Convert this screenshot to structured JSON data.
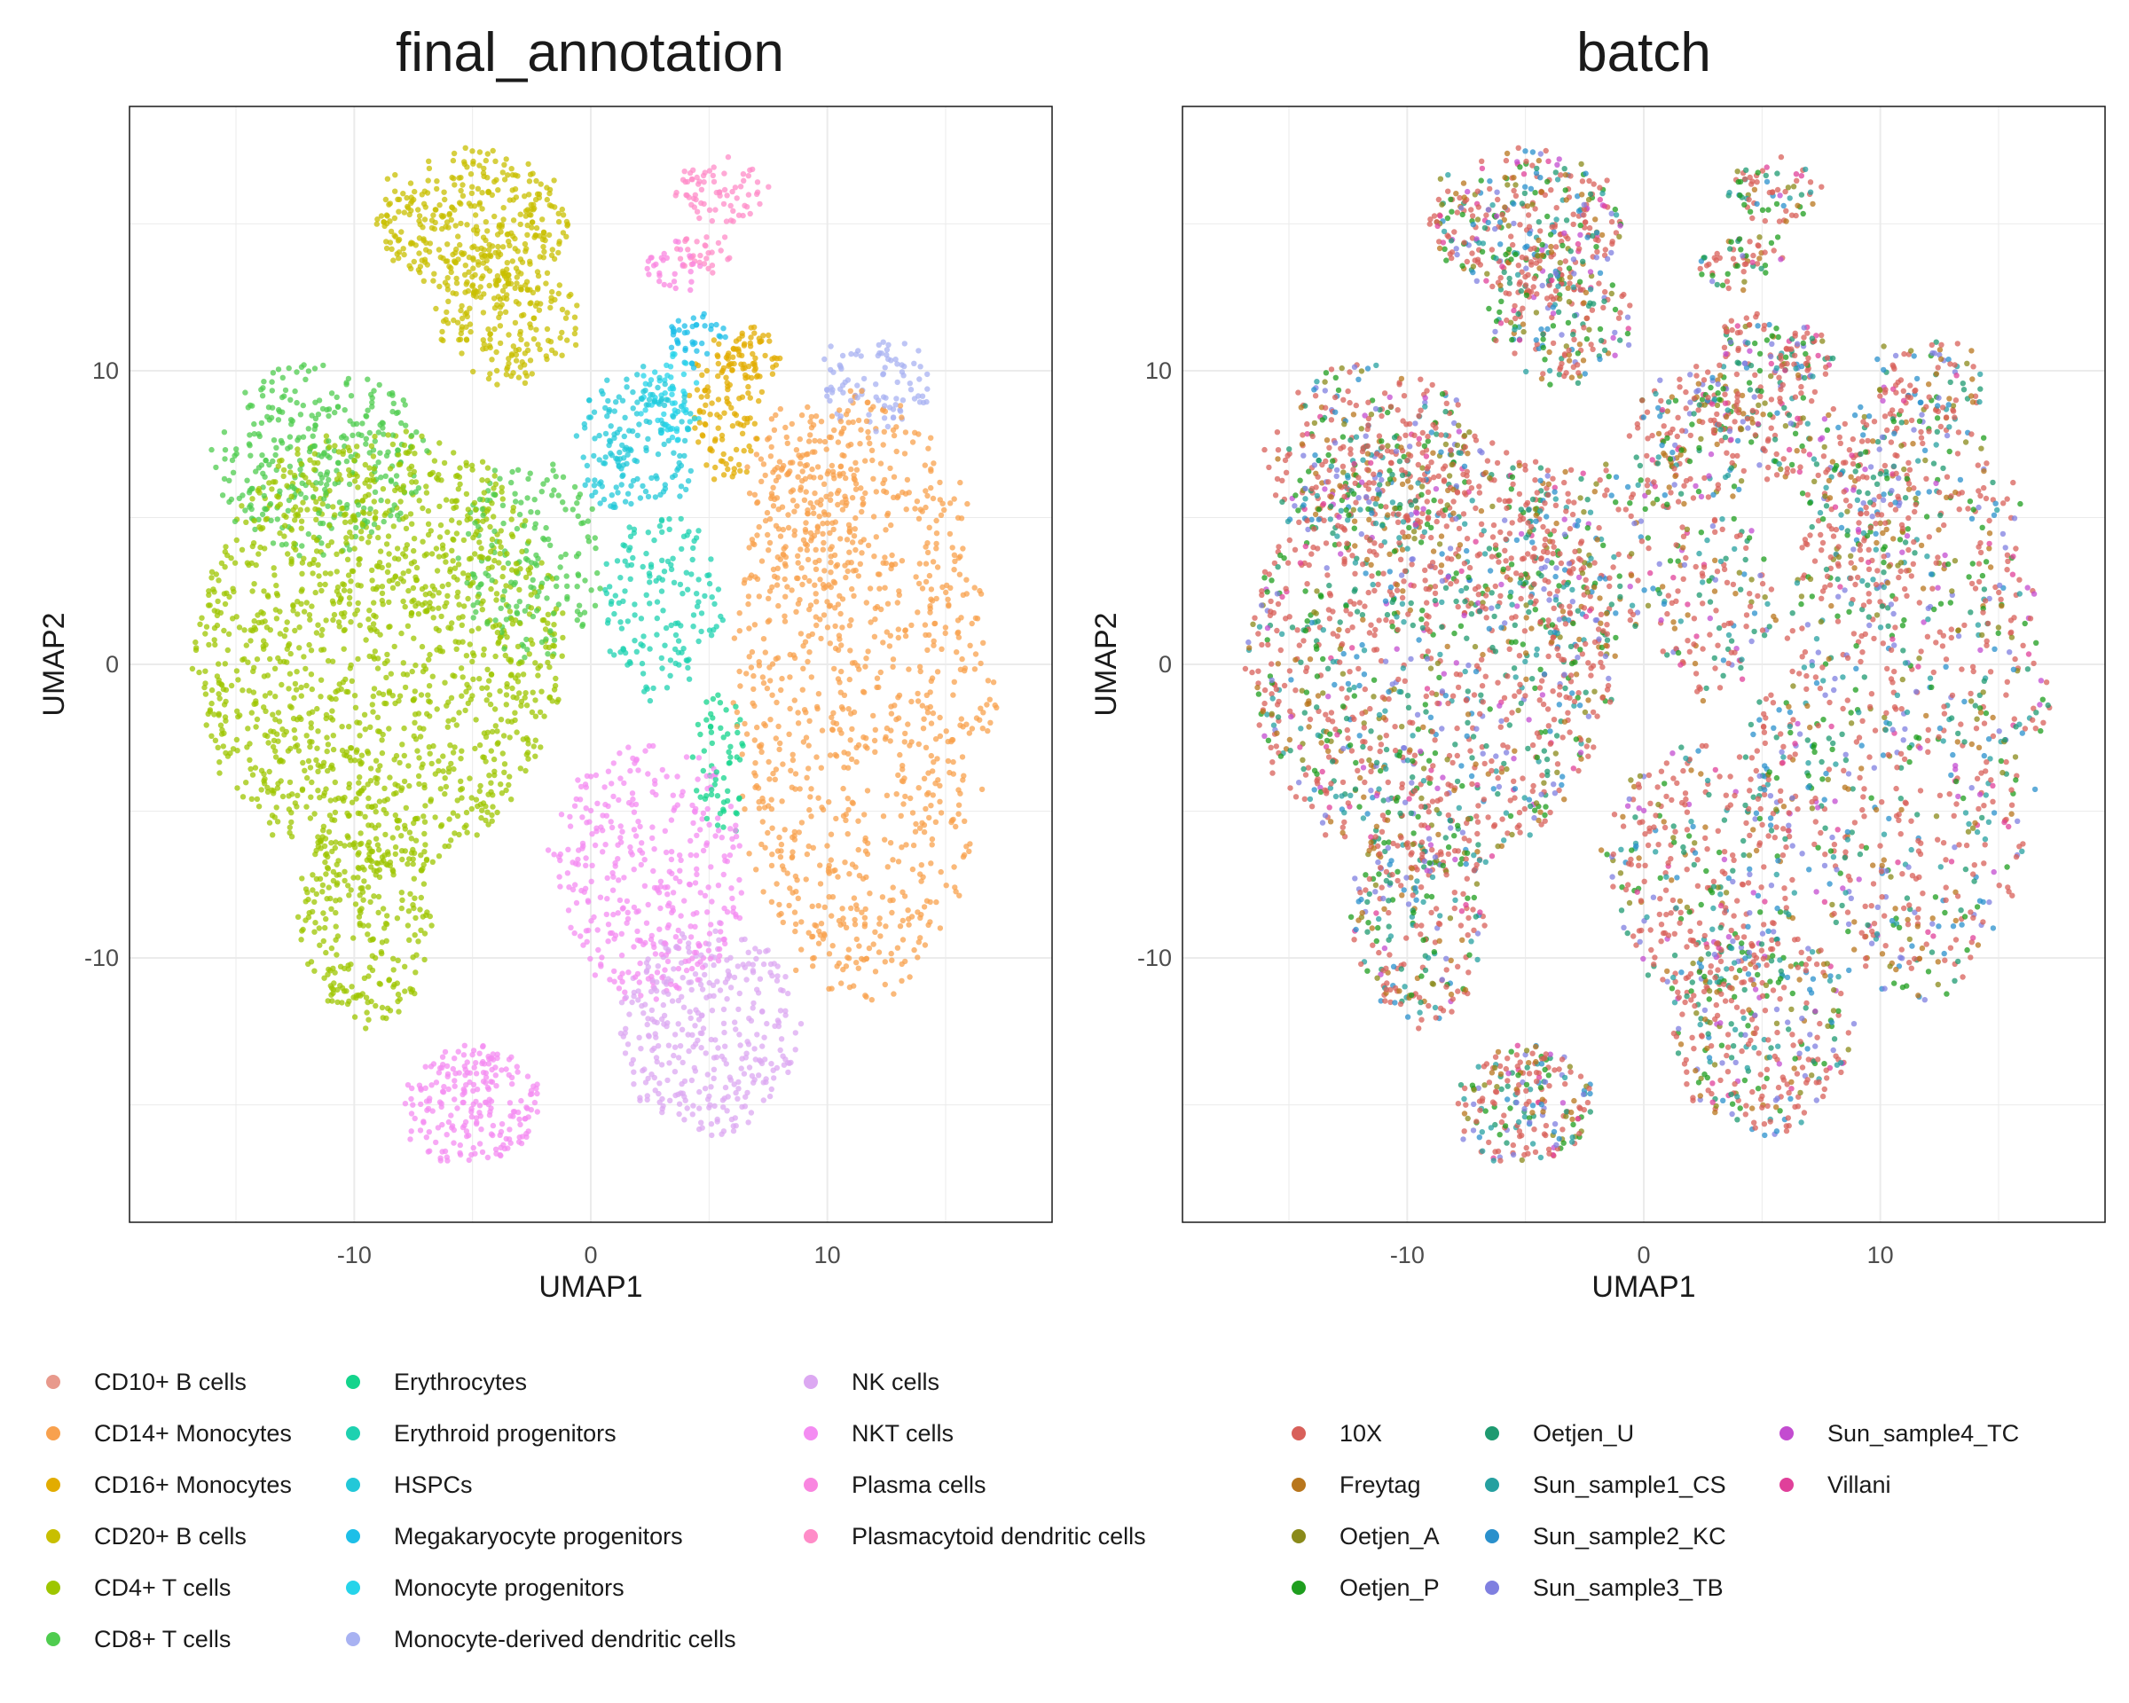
{
  "chart_data": [
    {
      "type": "scatter",
      "title": "final_annotation",
      "xlabel": "UMAP1",
      "ylabel": "UMAP2",
      "xlim": [
        -19.5,
        19.5
      ],
      "ylim": [
        -19,
        19
      ],
      "x_ticks": [
        -10,
        0,
        10
      ],
      "y_ticks": [
        -10,
        0,
        10
      ],
      "x_tick_labels": [
        "-10",
        "0",
        "10"
      ],
      "y_tick_labels": [
        "-10",
        "0",
        "10"
      ],
      "grid": true,
      "legend_position": "bottom",
      "series": [
        {
          "name": "CD10+ B cells",
          "color": "#e8998c",
          "clusters": []
        },
        {
          "name": "CD14+ Monocytes",
          "color": "#f8a14e",
          "clusters": [
            {
              "cx": 11.5,
              "cy": -1.0,
              "rx": 5.5,
              "ry": 10.3,
              "n": 900
            },
            {
              "cx": 9.0,
              "cy": 5.5,
              "rx": 2.5,
              "ry": 3.5,
              "n": 160
            }
          ]
        },
        {
          "name": "CD16+ Monocytes",
          "color": "#e2ac00",
          "clusters": [
            {
              "cx": 5.8,
              "cy": 8.8,
              "rx": 1.6,
              "ry": 2.4,
              "n": 120
            },
            {
              "cx": 7.0,
              "cy": 10.5,
              "rx": 1.0,
              "ry": 0.9,
              "n": 40
            }
          ]
        },
        {
          "name": "CD20+ B cells",
          "color": "#c8bf00",
          "clusters": [
            {
              "cx": -5.0,
              "cy": 15.0,
              "rx": 4.0,
              "ry": 2.4,
              "n": 380
            },
            {
              "cx": -3.5,
              "cy": 11.5,
              "rx": 3.2,
              "ry": 1.8,
              "n": 170
            }
          ]
        },
        {
          "name": "CD4+ T cells",
          "color": "#9ec600",
          "clusters": [
            {
              "cx": -9.0,
              "cy": 0.5,
              "rx": 7.8,
              "ry": 7.5,
              "n": 1400
            },
            {
              "cx": -9.5,
              "cy": -8.5,
              "rx": 2.8,
              "ry": 3.8,
              "n": 260
            }
          ]
        },
        {
          "name": "CD8+ T cells",
          "color": "#4fcc4f",
          "clusters": [
            {
              "cx": -11.5,
              "cy": 7.0,
              "rx": 4.5,
              "ry": 3.2,
              "n": 320
            },
            {
              "cx": -2.5,
              "cy": 3.5,
              "rx": 3.0,
              "ry": 3.5,
              "n": 180
            }
          ]
        },
        {
          "name": "Erythrocytes",
          "color": "#14d48c",
          "clusters": [
            {
              "cx": 5.5,
              "cy": -3.5,
              "rx": 1.2,
              "ry": 2.5,
              "n": 60
            }
          ]
        },
        {
          "name": "Erythroid progenitors",
          "color": "#1ed1b0",
          "clusters": [
            {
              "cx": 3.0,
              "cy": 2.0,
              "rx": 2.5,
              "ry": 3.2,
              "n": 150
            }
          ]
        },
        {
          "name": "HSPCs",
          "color": "#22c8d8",
          "clusters": [
            {
              "cx": 2.0,
              "cy": 7.5,
              "rx": 2.5,
              "ry": 2.5,
              "n": 170
            }
          ]
        },
        {
          "name": "Megakaryocyte progenitors",
          "color": "#1dbfe8",
          "clusters": [
            {
              "cx": 4.5,
              "cy": 11.0,
              "rx": 1.3,
              "ry": 1.0,
              "n": 40
            }
          ]
        },
        {
          "name": "Monocyte progenitors",
          "color": "#26d4ea",
          "clusters": [
            {
              "cx": 3.5,
              "cy": 9.0,
              "rx": 1.2,
              "ry": 1.5,
              "n": 60
            }
          ]
        },
        {
          "name": "Monocyte-derived dendritic cells",
          "color": "#a8b2f2",
          "clusters": [
            {
              "cx": 12.0,
              "cy": 9.5,
              "rx": 2.5,
              "ry": 1.4,
              "n": 90
            }
          ]
        },
        {
          "name": "NK cells",
          "color": "#dca8f2",
          "clusters": [
            {
              "cx": 5.0,
              "cy": -12.5,
              "rx": 3.8,
              "ry": 3.5,
              "n": 340
            }
          ]
        },
        {
          "name": "NKT cells",
          "color": "#f48cf2",
          "clusters": [
            {
              "cx": 2.5,
              "cy": -7.0,
              "rx": 4.0,
              "ry": 4.5,
              "n": 360
            },
            {
              "cx": -5.0,
              "cy": -15.0,
              "rx": 2.8,
              "ry": 2.0,
              "n": 220
            }
          ]
        },
        {
          "name": "Plasma cells",
          "color": "#f986e0",
          "clusters": [
            {
              "cx": 3.5,
              "cy": 13.5,
              "rx": 1.2,
              "ry": 0.8,
              "n": 30
            }
          ]
        },
        {
          "name": "Plasmacytoid dendritic cells",
          "color": "#ff8cc8",
          "clusters": [
            {
              "cx": 5.5,
              "cy": 16.0,
              "rx": 2.0,
              "ry": 1.0,
              "n": 70
            },
            {
              "cx": 4.5,
              "cy": 14.0,
              "rx": 1.3,
              "ry": 0.6,
              "n": 30
            }
          ]
        }
      ]
    },
    {
      "type": "scatter",
      "title": "batch",
      "xlabel": "UMAP1",
      "ylabel": "UMAP2",
      "xlim": [
        -19.5,
        19.5
      ],
      "ylim": [
        -19,
        19
      ],
      "x_ticks": [
        -10,
        0,
        10
      ],
      "y_ticks": [
        -10,
        0,
        10
      ],
      "x_tick_labels": [
        "-10",
        "0",
        "10"
      ],
      "y_tick_labels": [
        "-10",
        "0",
        "10"
      ],
      "grid": true,
      "legend_position": "bottom",
      "series": [
        {
          "name": "10X",
          "color": "#d8605a"
        },
        {
          "name": "Freytag",
          "color": "#b8761c"
        },
        {
          "name": "Oetjen_A",
          "color": "#8a8a1a"
        },
        {
          "name": "Oetjen_P",
          "color": "#1e9e1e"
        },
        {
          "name": "Oetjen_U",
          "color": "#1e9a70"
        },
        {
          "name": "Sun_sample1_CS",
          "color": "#26a0a0"
        },
        {
          "name": "Sun_sample2_KC",
          "color": "#2a90cc"
        },
        {
          "name": "Sun_sample3_TB",
          "color": "#7f7fe0"
        },
        {
          "name": "Sun_sample4_TC",
          "color": "#c34cd0"
        },
        {
          "name": "Villani",
          "color": "#e0409a"
        }
      ]
    }
  ]
}
